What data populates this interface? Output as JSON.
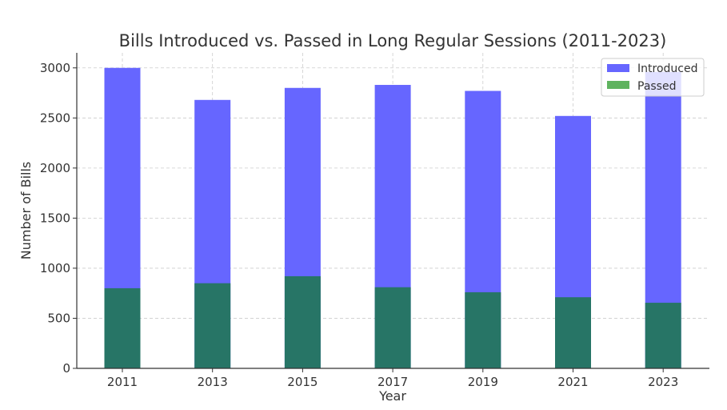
{
  "chart_data": {
    "type": "bar",
    "stacking": "overlay",
    "title": "Bills Introduced vs. Passed in Long Regular Sessions (2011-2023)",
    "xlabel": "Year",
    "ylabel": "Number of Bills",
    "categories": [
      "2011",
      "2013",
      "2015",
      "2017",
      "2019",
      "2021",
      "2023"
    ],
    "series": [
      {
        "name": "Introduced",
        "values": [
          3000,
          2680,
          2800,
          2830,
          2770,
          2520,
          2960
        ],
        "color": "#6666ff"
      },
      {
        "name": "Passed",
        "values": [
          800,
          850,
          920,
          810,
          760,
          710,
          655
        ],
        "color": "#5fb35f",
        "overlay_color": "#277566"
      }
    ],
    "ylim": [
      0,
      3150
    ],
    "yticks": [
      0,
      500,
      1000,
      1500,
      2000,
      2500,
      3000
    ],
    "grid": true,
    "legend": "top-right"
  }
}
